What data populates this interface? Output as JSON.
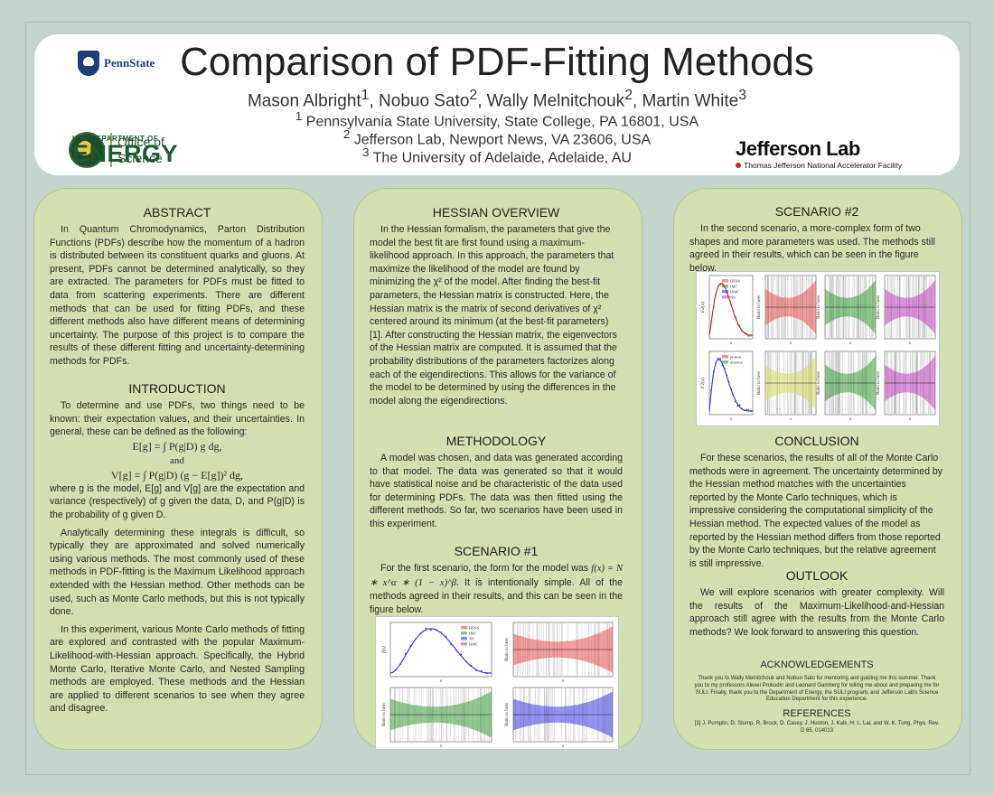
{
  "header": {
    "title": "Comparison of PDF-Fitting Methods",
    "authors_html": "Mason Albright<sup>1</sup>, Nobuo Sato<sup>2</sup>, Wally Melnitchouk<sup>2</sup>, Martin White<sup>3</sup>",
    "affiliations": [
      {
        "num": "1",
        "text": "Pennsylvania State University, State College, PA 16801, USA"
      },
      {
        "num": "2",
        "text": "Jefferson Lab, Newport News, VA 23606, USA"
      },
      {
        "num": "3",
        "text": "The University of Adelaide, Adelaide, AU"
      }
    ],
    "logos": {
      "pennstate": "PennState",
      "doe_dept": "U.S. DEPARTMENT OF",
      "doe_energy": "ENERGY",
      "doe_office_line1": "Office of",
      "doe_office_line2": "Science",
      "jlab_name": "Jefferson Lab",
      "jlab_sub": "Thomas Jefferson National Accelerator Facility"
    }
  },
  "abstract": {
    "heading": "ABSTRACT",
    "text": "In Quantum Chromodynamics, Parton Distribution Functions (PDFs) describe how the momentum of a hadron is distributed between its constituent quarks and gluons. At present, PDFs cannot be determined analytically, so they are extracted. The parameters for PDFs must be fitted to data from scattering experiments. There are different methods that can be used for fitting PDFs, and these different methods also have different means of determining uncertainty. The purpose of this project is to compare the results of these different fitting and uncertainty-determining methods for PDFs."
  },
  "introduction": {
    "heading": "INTRODUCTION",
    "p1": "To determine and use PDFs, two things need to be known: their expectation values, and their uncertainties. In general, these can be defined as the following:",
    "eq1": "E[g] = ∫ P(g|D) g dg,",
    "eq_and": "and",
    "eq2": "V[g] = ∫ P(g|D) (g − E[g])² dg,",
    "p2": "where g is the model, E[g] and V[g] are the expectation and variance (respectively) of g given the data, D, and P(g|D) is the probability of g given D.",
    "p3": "Analytically determining these integrals is difficult, so typically they are approximated and solved numerically using various methods. The most commonly used of these methods in PDF-fitting is the Maximum Likelihood approach extended with the Hessian method. Other methods can be used, such as Monte Carlo methods, but this is not typically done.",
    "p4": "In this experiment, various Monte Carlo methods of fitting are explored and contrasted with the popular Maximum-Likelihood-with-Hessian approach. Specifically, the Hybrid Monte Carlo, Iterative Monte Carlo, and Nested Sampling methods are employed. These methods and the Hessian are applied to different scenarios to see when they agree and disagree."
  },
  "hessian": {
    "heading": "HESSIAN OVERVIEW",
    "text": "In the Hessian formalism, the parameters that give the model the best fit are first found using a maximum-likelihood approach. In this approach, the parameters that maximize the likelihood of the model are found by minimizing the χ² of the model. After finding the best-fit parameters, the Hessian matrix is constructed. Here, the Hessian matrix is the matrix of second derivatives of χ² centered around its minimum (at the best-fit parameters) [1]. After constructing the Hessian matrix, the eigenvectors of the Hessian matrix are computed. It is assumed that the probability distributions of the parameters factorizes along each of the eigendirections. This allows for the variance of the model to be determined by using the differences in the model along the eigendirections."
  },
  "methodology": {
    "heading": "METHODOLOGY",
    "text": "A model was chosen, and data was generated according to that model. The data was generated so that it would have statistical noise and be characteristic of the data used for determining PDFs. The data was then fitted using the different methods. So far, two scenarios have been used in this experiment."
  },
  "scenario1": {
    "heading": "SCENARIO #1",
    "text_a": "For the first scenario, the form for the model was",
    "formula": "f(x) = N ∗ x^α ∗ (1 − x)^β",
    "text_b": ". It is intentionally simple. All of the methods agreed in their results, and this can be seen in the figure below.",
    "legend": [
      "HESS",
      "IMC",
      "NS",
      "HMC"
    ],
    "ylabel_main": "f(x)",
    "ylabel_ratio": "Ratio to hess",
    "xlabel": "x"
  },
  "scenario2": {
    "heading": "SCENARIO #2",
    "text": "In the second scenario, a more-complex form of two shapes and more parameters was used. The methods still agreed in their results, which can be seen in the figure below.",
    "legend": [
      "HESS",
      "IMC",
      "HMC",
      "NS"
    ],
    "legend2": [
      "proton",
      "neutron"
    ],
    "ylabel_top": "F2(x)",
    "ylabel_ratio": "Ratio to hess",
    "xlabel": "x"
  },
  "conclusion": {
    "heading": "CONCLUSION",
    "text": "For these scenarios, the results of all of the Monte Carlo methods were in agreement. The uncertainty determined by the Hessian method matches with the uncertainties reported by the Monte Carlo techniques, which is impressive considering the computational simplicity of the Hessian method. The expected values of the model as reported by the Hessian method differs from those reported by the Monte Carlo techniques, but the relative agreement is still impressive."
  },
  "outlook": {
    "heading": "OUTLOOK",
    "text": "We will explore scenarios with greater complexity. Will the results of the Maximum-Likelihood-and-Hessian approach still agree with the results from the Monte Carlo methods? We look forward to answering this question."
  },
  "acknowledgements": {
    "heading": "ACKNOWLEDGEMENTS",
    "text": "Thank you to Wally Melnitchouk and Nobuo Sato for mentoring and guiding me this summer. Thank you to my professors Alexei Prokudin and Leonard Gamberg for telling me about and preparing me for SULI. Finally, thank you to the Department of Energy, the SULI program, and Jefferson Lab's Science Education Department for this experience."
  },
  "references": {
    "heading": "REFERENCES",
    "text": "[1]   J. Pumplin, D. Stump, R. Brock, D. Casey, J. Huston, J. Kalk, H. L. Lai, and W. K. Tung, Phys. Rev. D 65, 014013"
  },
  "colors": {
    "background": "#c3d5cd",
    "panel": "#d2dfb0",
    "hess_red": "#e45050",
    "imc_green": "#3a9a3a",
    "hmc_blue": "#3a3ae0",
    "ns_magenta": "#c040c0"
  }
}
